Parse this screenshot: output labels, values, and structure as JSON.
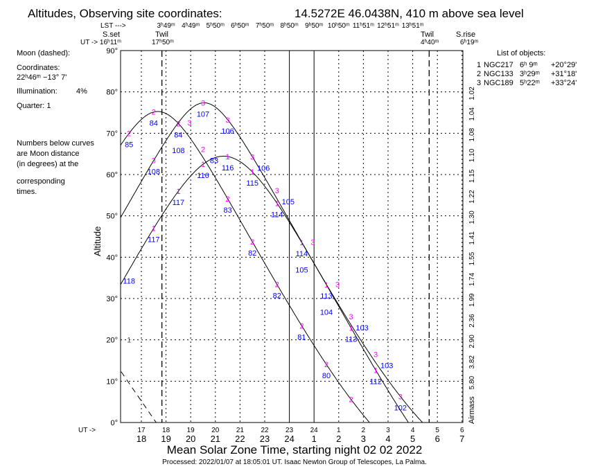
{
  "header": {
    "title": "Altitudes, Observing site coordinates:",
    "site": "14.5272E  46.0438N,  410 m above sea level",
    "lst_label": "LST --->",
    "lst_values": [
      "3ʰ49ᵐ",
      "4ʰ49ᵐ",
      "5ʰ50ᵐ",
      "6ʰ50ᵐ",
      "7ʰ50ᵐ",
      "8ʰ50ᵐ",
      "9ʰ50ᵐ",
      "10ʰ50ᵐ",
      "11ʰ51ᵐ",
      "12ʰ51ᵐ",
      "13ʰ51ᵐ"
    ],
    "sunset_label": "S.set",
    "ut_arrow": "UT -> 16ʰ11ᵐ",
    "twil_eve_label": "Twil",
    "twil_eve_time": "17ʰ50ᵐ",
    "twil_morn_label": "Twil",
    "twil_morn_time": "4ʰ40ᵐ",
    "sunrise_label": "S.rise",
    "sunrise_time": "6ʰ19ᵐ"
  },
  "moon": {
    "heading": "Moon (dashed):",
    "coords_label": "Coordinates:",
    "coords": "22ʰ46ᵐ  −13° 7'",
    "illumination_label": "Illumination:",
    "illumination": "4%",
    "quarter": "Quarter: 1",
    "note": [
      "Numbers below curves",
      "are Moon distance",
      "(in degrees) at the",
      "corresponding",
      "times."
    ]
  },
  "objects_list": {
    "heading": "List of objects:",
    "rows": [
      {
        "n": "1",
        "name": "NGC217",
        "ra": "6ʰ 9ᵐ",
        "dec": "+20°29'"
      },
      {
        "n": "2",
        "name": "NGC133",
        "ra": "3ʰ29ᵐ",
        "dec": "+31°18'"
      },
      {
        "n": "3",
        "name": "NGC189",
        "ra": "5ʰ22ᵐ",
        "dec": "+33°24'"
      }
    ]
  },
  "footer": {
    "ut_arrow": "UT ->",
    "xlabel": "Mean Solar Zone Time, starting night 02 02 2022",
    "processed": "Processed: 2022/01/07 at 18:05:01 UT. Isaac  Newton Group of Telescopes, La Palma."
  },
  "colors": {
    "marker": "#ff00ff",
    "distance": "#0000ff",
    "line": "#000000"
  },
  "chart_data": {
    "type": "line",
    "ylabel": "Altitude",
    "y2label": "Airmass",
    "ylim": [
      0,
      90
    ],
    "xlim_ut": [
      16.18,
      30.03
    ],
    "yticks": [
      "0°",
      "10°",
      "20°",
      "30°",
      "40°",
      "50°",
      "60°",
      "70°",
      "80°",
      "90°"
    ],
    "ut_ticks": [
      "17",
      "18",
      "19",
      "20",
      "21",
      "22",
      "23",
      "24",
      "1",
      "2",
      "3",
      "4",
      "5",
      "6"
    ],
    "local_ticks": [
      "18",
      "19",
      "20",
      "21",
      "22",
      "23",
      "24",
      "1",
      "2",
      "3",
      "4",
      "5",
      "6",
      "7"
    ],
    "airmass_ticks": [
      {
        "alt": 80,
        "label": "1.02"
      },
      {
        "alt": 75,
        "label": "1.04"
      },
      {
        "alt": 70,
        "label": "1.08"
      },
      {
        "alt": 65,
        "label": "1.10"
      },
      {
        "alt": 60,
        "label": "1.15"
      },
      {
        "alt": 55,
        "label": "1.22"
      },
      {
        "alt": 50,
        "label": "1.30"
      },
      {
        "alt": 45,
        "label": "1.41"
      },
      {
        "alt": 40,
        "label": "1.55"
      },
      {
        "alt": 35,
        "label": "1.74"
      },
      {
        "alt": 30,
        "label": "1.99"
      },
      {
        "alt": 25,
        "label": "2.36"
      },
      {
        "alt": 20,
        "label": "2.90"
      },
      {
        "alt": 15,
        "label": "3.82"
      },
      {
        "alt": 10,
        "label": "5.80"
      }
    ],
    "site_latitude": 46.0438,
    "lst_at_ut18_hours": 3.817,
    "twilight_ut": [
      17.833,
      28.667
    ],
    "midnight_lines_ut": [
      23,
      24
    ],
    "series": [
      {
        "name": "1",
        "ra_hours": 6.15,
        "dec": 20.483,
        "marks": [
          {
            "ut": 17.5,
            "dist": "117"
          },
          {
            "ut": 18.5,
            "dist": "117"
          },
          {
            "ut": 19.5,
            "dist": "116"
          },
          {
            "ut": 20.5,
            "dist": "116"
          },
          {
            "ut": 21.5,
            "dist": "115"
          },
          {
            "ut": 22.5,
            "dist": "114"
          },
          {
            "ut": 23.5,
            "dist": "114"
          },
          {
            "ut": 24.5,
            "dist": "113"
          },
          {
            "ut": 25.5,
            "dist": "113"
          },
          {
            "ut": 26.5,
            "dist": "112"
          }
        ],
        "extra_dist": [
          {
            "ut": 16.5,
            "dist": "118"
          }
        ]
      },
      {
        "name": "2",
        "ra_hours": 3.483,
        "dec": 31.3,
        "marks": [
          {
            "ut": 16.5,
            "dist": "85"
          },
          {
            "ut": 17.5,
            "dist": "84"
          },
          {
            "ut": 18.5,
            "dist": "84"
          },
          {
            "ut": 19.5,
            "dist": "83"
          },
          {
            "ut": 20.5,
            "dist": "83"
          },
          {
            "ut": 21.5,
            "dist": "82"
          },
          {
            "ut": 22.5,
            "dist": "82"
          },
          {
            "ut": 23.5,
            "dist": "81"
          },
          {
            "ut": 24.5,
            "dist": "80"
          },
          {
            "ut": 25.5,
            "dist": ""
          }
        ]
      },
      {
        "name": "3",
        "ra_hours": 5.367,
        "dec": 33.4,
        "marks": [
          {
            "ut": 17.5,
            "dist": "108"
          },
          {
            "ut": 18.5,
            "dist": "108"
          },
          {
            "ut": 19.5,
            "dist": "107"
          },
          {
            "ut": 20.5,
            "dist": "106"
          },
          {
            "ut": 21.5,
            "dist": "106"
          },
          {
            "ut": 22.5,
            "dist": "105"
          },
          {
            "ut": 23.5,
            "dist": "105"
          },
          {
            "ut": 24.5,
            "dist": "104"
          },
          {
            "ut": 25.5,
            "dist": "103"
          },
          {
            "ut": 26.5,
            "dist": "103"
          },
          {
            "ut": 27.5,
            "dist": "102"
          }
        ]
      }
    ],
    "stray_marker": {
      "label": "1",
      "ut": 16.5,
      "alt": 20
    },
    "moon_curve": [
      [
        16.18,
        12.3
      ],
      [
        17.6,
        0
      ]
    ]
  }
}
